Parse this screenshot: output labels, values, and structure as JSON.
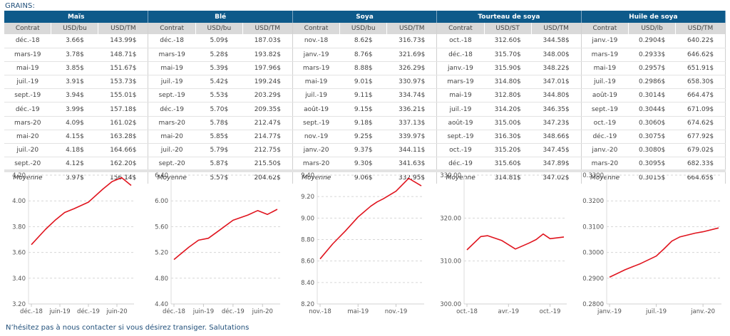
{
  "title": "GRAINS:",
  "footer": "N’hésitez pas à nous contacter si vous désirez transiger. Salutations",
  "colors": {
    "header_bg": "#0e5a8a",
    "subheader_bg": "#d9d9d9",
    "line": "#e0141e",
    "title_text": "#1f4e79"
  },
  "tables": [
    {
      "name": "Maïs",
      "columns": [
        "Contrat",
        "USD/bu",
        "USD/TM"
      ],
      "rows": [
        [
          "déc.-18",
          "3.66$",
          "143.99$"
        ],
        [
          "mars-19",
          "3.78$",
          "148.71$"
        ],
        [
          "mai-19",
          "3.85$",
          "151.67$"
        ],
        [
          "juil.-19",
          "3.91$",
          "153.73$"
        ],
        [
          "sept.-19",
          "3.94$",
          "155.01$"
        ],
        [
          "déc.-19",
          "3.99$",
          "157.18$"
        ],
        [
          "mars-20",
          "4.09$",
          "161.02$"
        ],
        [
          "mai-20",
          "4.15$",
          "163.28$"
        ],
        [
          "juil.-20",
          "4.18$",
          "164.66$"
        ],
        [
          "sept.-20",
          "4.12$",
          "162.20$"
        ]
      ],
      "average": [
        "Moyenne",
        "3.97$",
        "156.14$"
      ]
    },
    {
      "name": "Blé",
      "columns": [
        "Contrat",
        "USD/bu",
        "USD/TM"
      ],
      "rows": [
        [
          "déc.-18",
          "5.09$",
          "187.03$"
        ],
        [
          "mars-19",
          "5.28$",
          "193.82$"
        ],
        [
          "mai-19",
          "5.39$",
          "197.96$"
        ],
        [
          "juil.-19",
          "5.42$",
          "199.24$"
        ],
        [
          "sept.-19",
          "5.53$",
          "203.29$"
        ],
        [
          "déc.-19",
          "5.70$",
          "209.35$"
        ],
        [
          "mars-20",
          "5.78$",
          "212.47$"
        ],
        [
          "mai-20",
          "5.85$",
          "214.77$"
        ],
        [
          "juil.-20",
          "5.79$",
          "212.75$"
        ],
        [
          "sept.-20",
          "5.87$",
          "215.50$"
        ]
      ],
      "average": [
        "Moyenne",
        "5.57$",
        "204.62$"
      ]
    },
    {
      "name": "Soya",
      "columns": [
        "Contrat",
        "USD/bu",
        "USD/TM"
      ],
      "rows": [
        [
          "nov.-18",
          "8.62$",
          "316.73$"
        ],
        [
          "janv.-19",
          "8.76$",
          "321.69$"
        ],
        [
          "mars-19",
          "8.88$",
          "326.29$"
        ],
        [
          "mai-19",
          "9.01$",
          "330.97$"
        ],
        [
          "juil.-19",
          "9.11$",
          "334.74$"
        ],
        [
          "août-19",
          "9.15$",
          "336.21$"
        ],
        [
          "sept.-19",
          "9.18$",
          "337.13$"
        ],
        [
          "nov.-19",
          "9.25$",
          "339.97$"
        ],
        [
          "janv.-20",
          "9.37$",
          "344.11$"
        ],
        [
          "mars-20",
          "9.30$",
          "341.63$"
        ]
      ],
      "average": [
        "Moyenne",
        "9.06$",
        "332.95$"
      ]
    },
    {
      "name": "Tourteau de soya",
      "columns": [
        "Contrat",
        "USD/ST",
        "USD/TM"
      ],
      "rows": [
        [
          "oct.-18",
          "312.60$",
          "344.58$"
        ],
        [
          "déc.-18",
          "315.70$",
          "348.00$"
        ],
        [
          "janv.-19",
          "315.90$",
          "348.22$"
        ],
        [
          "mars-19",
          "314.80$",
          "347.01$"
        ],
        [
          "mai-19",
          "312.80$",
          "344.80$"
        ],
        [
          "juil.-19",
          "314.20$",
          "346.35$"
        ],
        [
          "août-19",
          "315.00$",
          "347.23$"
        ],
        [
          "sept.-19",
          "316.30$",
          "348.66$"
        ],
        [
          "oct.-19",
          "315.20$",
          "347.45$"
        ],
        [
          "déc.-19",
          "315.60$",
          "347.89$"
        ]
      ],
      "average": [
        "Moyenne",
        "314.81$",
        "347.02$"
      ]
    },
    {
      "name": "Huile de soya",
      "columns": [
        "Contrat",
        "USD/lb",
        "USD/TM"
      ],
      "rows": [
        [
          "janv.-19",
          "0.2904$",
          "640.22$"
        ],
        [
          "mars-19",
          "0.2933$",
          "646.62$"
        ],
        [
          "mai-19",
          "0.2957$",
          "651.91$"
        ],
        [
          "juil.-19",
          "0.2986$",
          "658.30$"
        ],
        [
          "août-19",
          "0.3014$",
          "664.47$"
        ],
        [
          "sept.-19",
          "0.3044$",
          "671.09$"
        ],
        [
          "oct.-19",
          "0.3060$",
          "674.62$"
        ],
        [
          "déc.-19",
          "0.3075$",
          "677.92$"
        ],
        [
          "janv.-20",
          "0.3080$",
          "679.02$"
        ],
        [
          "mars-20",
          "0.3095$",
          "682.33$"
        ]
      ],
      "average": [
        "Moyenne",
        "0.3015$",
        "664.65$"
      ]
    }
  ],
  "chart_data": [
    {
      "type": "line",
      "title": "Maïs",
      "xlabel": "",
      "ylabel": "",
      "x": [
        "2018-12",
        "2019-03",
        "2019-05",
        "2019-07",
        "2019-09",
        "2019-12",
        "2020-03",
        "2020-05",
        "2020-07",
        "2020-09"
      ],
      "values": [
        3.66,
        3.78,
        3.85,
        3.91,
        3.94,
        3.99,
        4.09,
        4.15,
        4.18,
        4.12
      ],
      "ylim": [
        3.2,
        4.2
      ],
      "yticks": [
        "3.20",
        "3.40",
        "3.60",
        "3.80",
        "4.00",
        "4.20"
      ],
      "xticks": [
        {
          "label": "déc.-18",
          "at": "2018-12"
        },
        {
          "label": "juin-19",
          "at": "2019-06"
        },
        {
          "label": "déc.-19",
          "at": "2019-12"
        },
        {
          "label": "juin-20",
          "at": "2020-06"
        }
      ],
      "xrange": [
        "2018-12",
        "2020-09"
      ],
      "grid": true,
      "legend": "none"
    },
    {
      "type": "line",
      "title": "Blé",
      "xlabel": "",
      "ylabel": "",
      "x": [
        "2018-12",
        "2019-03",
        "2019-05",
        "2019-07",
        "2019-09",
        "2019-12",
        "2020-03",
        "2020-05",
        "2020-07",
        "2020-09"
      ],
      "values": [
        5.09,
        5.28,
        5.39,
        5.42,
        5.53,
        5.7,
        5.78,
        5.85,
        5.79,
        5.87
      ],
      "ylim": [
        4.4,
        6.4
      ],
      "yticks": [
        "4.40",
        "4.80",
        "5.20",
        "5.60",
        "6.00",
        "6.40"
      ],
      "xticks": [
        {
          "label": "déc.-18",
          "at": "2018-12"
        },
        {
          "label": "juin-19",
          "at": "2019-06"
        },
        {
          "label": "déc.-19",
          "at": "2019-12"
        },
        {
          "label": "juin-20",
          "at": "2020-06"
        }
      ],
      "xrange": [
        "2018-12",
        "2020-09"
      ],
      "grid": true,
      "legend": "none"
    },
    {
      "type": "line",
      "title": "Soya",
      "xlabel": "",
      "ylabel": "",
      "x": [
        "2018-11",
        "2019-01",
        "2019-03",
        "2019-05",
        "2019-07",
        "2019-08",
        "2019-09",
        "2019-11",
        "2020-01",
        "2020-03"
      ],
      "values": [
        8.62,
        8.76,
        8.88,
        9.01,
        9.11,
        9.15,
        9.18,
        9.25,
        9.37,
        9.3
      ],
      "ylim": [
        8.2,
        9.4
      ],
      "yticks": [
        "8.20",
        "8.40",
        "8.60",
        "8.80",
        "9.00",
        "9.20",
        "9.40"
      ],
      "xticks": [
        {
          "label": "nov.-18",
          "at": "2018-11"
        },
        {
          "label": "mai-19",
          "at": "2019-05"
        },
        {
          "label": "nov.-19",
          "at": "2019-11"
        }
      ],
      "xrange": [
        "2018-11",
        "2020-03"
      ],
      "grid": true,
      "legend": "none"
    },
    {
      "type": "line",
      "title": "Tourteau de soya",
      "xlabel": "",
      "ylabel": "",
      "x": [
        "2018-10",
        "2018-12",
        "2019-01",
        "2019-03",
        "2019-05",
        "2019-07",
        "2019-08",
        "2019-09",
        "2019-10",
        "2019-12"
      ],
      "values": [
        312.6,
        315.7,
        315.9,
        314.8,
        312.8,
        314.2,
        315.0,
        316.3,
        315.2,
        315.6
      ],
      "ylim": [
        300,
        330
      ],
      "yticks": [
        "300.00",
        "310.00",
        "320.00",
        "330.00"
      ],
      "xticks": [
        {
          "label": "oct.-18",
          "at": "2018-10"
        },
        {
          "label": "avr.-19",
          "at": "2019-04"
        },
        {
          "label": "oct.-19",
          "at": "2019-10"
        }
      ],
      "xrange": [
        "2018-10",
        "2019-12"
      ],
      "grid": true,
      "legend": "none"
    },
    {
      "type": "line",
      "title": "Huile de soya",
      "xlabel": "",
      "ylabel": "",
      "x": [
        "2019-01",
        "2019-03",
        "2019-05",
        "2019-07",
        "2019-08",
        "2019-09",
        "2019-10",
        "2019-12",
        "2020-01",
        "2020-03"
      ],
      "values": [
        0.2904,
        0.2933,
        0.2957,
        0.2986,
        0.3014,
        0.3044,
        0.306,
        0.3075,
        0.308,
        0.3095
      ],
      "ylim": [
        0.28,
        0.33
      ],
      "yticks": [
        "0.2800",
        "0.2900",
        "0.3000",
        "0.3100",
        "0.3200",
        "0.3300"
      ],
      "xticks": [
        {
          "label": "janv.-19",
          "at": "2019-01"
        },
        {
          "label": "juil.-19",
          "at": "2019-07"
        },
        {
          "label": "janv.-20",
          "at": "2020-01"
        }
      ],
      "xrange": [
        "2019-01",
        "2020-03"
      ],
      "grid": true,
      "legend": "none"
    }
  ]
}
